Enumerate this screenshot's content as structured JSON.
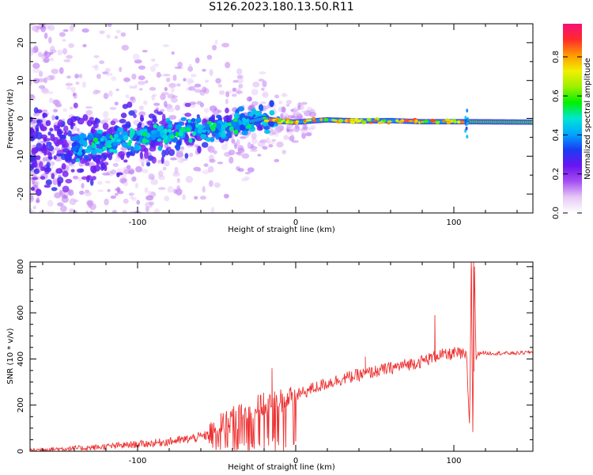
{
  "page_title": "S126.2023.180.13.50.R11",
  "chart_data": [
    {
      "type": "heatmap",
      "title": "S126.2023.180.13.50.R11",
      "xlabel": "Height of straight line (km)",
      "ylabel": "Frequency (Hz)",
      "xlim": [
        -168,
        150
      ],
      "ylim": [
        -25,
        25
      ],
      "xticks": [
        -100,
        0,
        100
      ],
      "yticks": [
        -20,
        -10,
        0,
        10,
        20
      ],
      "grid": false,
      "colorbar": {
        "label": "Normalized spectral amplitude",
        "range": [
          0.0,
          0.97
        ],
        "ticks": [
          0.0,
          0.2,
          0.4,
          0.6,
          0.8
        ],
        "colormap": [
          "#ffffff",
          "#e6c9f5",
          "#a64ff2",
          "#6a14f0",
          "#1a3cf2",
          "#00a6ff",
          "#00e6d2",
          "#00f000",
          "#9cf000",
          "#f0f000",
          "#ff9a00",
          "#ff2a2a",
          "#f50f78"
        ]
      },
      "ridge": [
        {
          "x": -168,
          "y": -9
        },
        {
          "x": -140,
          "y": -8
        },
        {
          "x": -120,
          "y": -6.5
        },
        {
          "x": -100,
          "y": -5
        },
        {
          "x": -80,
          "y": -4
        },
        {
          "x": -60,
          "y": -3
        },
        {
          "x": -40,
          "y": -2
        },
        {
          "x": -30,
          "y": -1
        },
        {
          "x": -20,
          "y": 0
        },
        {
          "x": -10,
          "y": -0.8
        },
        {
          "x": 0,
          "y": -1
        },
        {
          "x": 20,
          "y": -0.4
        },
        {
          "x": 40,
          "y": -0.7
        },
        {
          "x": 60,
          "y": -0.6
        },
        {
          "x": 80,
          "y": -0.9
        },
        {
          "x": 100,
          "y": -0.9
        },
        {
          "x": 112,
          "y": -0.9
        },
        {
          "x": 150,
          "y": -1
        }
      ]
    },
    {
      "type": "line",
      "xlabel": "Height of straight line (km)",
      "ylabel": "SNR (10 * v/v)",
      "xlim": [
        -168,
        150
      ],
      "ylim": [
        0,
        820
      ],
      "xticks": [
        -100,
        0,
        100
      ],
      "yticks": [
        0,
        200,
        400,
        600,
        800
      ],
      "grid": false,
      "color": "#ee3333",
      "series": [
        {
          "x": [
            -168,
            -150,
            -130,
            -110,
            -90,
            -70,
            -55,
            -50,
            -45,
            -40,
            -35,
            -30,
            -25,
            -20,
            -15,
            -10,
            -5,
            0,
            10,
            20,
            30,
            40,
            50,
            60,
            70,
            80,
            88,
            90,
            95,
            100,
            105,
            108,
            110,
            111,
            112,
            113,
            114,
            115,
            118,
            120,
            130,
            140,
            150
          ],
          "y": [
            5,
            10,
            15,
            25,
            35,
            50,
            70,
            100,
            120,
            140,
            150,
            170,
            190,
            200,
            210,
            220,
            230,
            240,
            270,
            295,
            315,
            330,
            345,
            360,
            375,
            390,
            410,
            420,
            415,
            425,
            420,
            410,
            100,
            820,
            90,
            820,
            400,
            420,
            430,
            425,
            425,
            425,
            430
          ]
        }
      ],
      "spikes": [
        {
          "x": -15,
          "y": 360
        },
        {
          "x": 44,
          "y": 410
        },
        {
          "x": 88,
          "y": 590
        },
        {
          "x": 111,
          "y": 820
        },
        {
          "x": 112.5,
          "y": 820
        }
      ]
    }
  ]
}
